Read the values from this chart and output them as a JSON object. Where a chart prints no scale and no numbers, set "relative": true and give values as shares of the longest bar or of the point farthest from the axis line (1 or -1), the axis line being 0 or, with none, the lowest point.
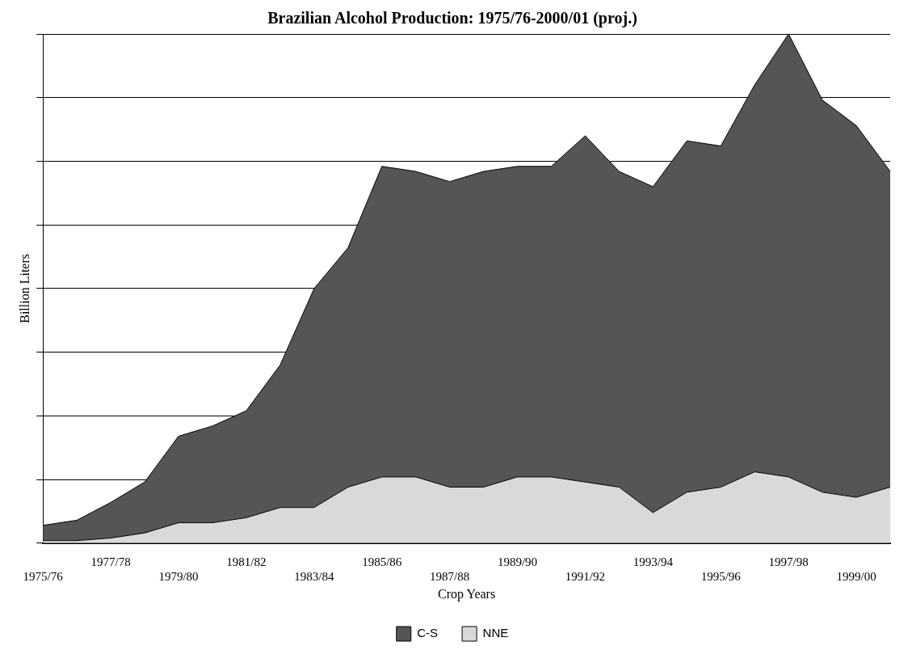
{
  "chart_data": {
    "type": "area",
    "title": "Brazilian Alcohol Production: 1975/76-2000/01 (proj.)",
    "xlabel": "Crop Years",
    "ylabel": "Billion Liters",
    "relative": true,
    "stacked": true,
    "grid": "y",
    "legend": "bottom",
    "categories": [
      "1975/76",
      null,
      "1977/78",
      null,
      "1979/80",
      null,
      "1981/82",
      null,
      "1983/84",
      null,
      "1985/86",
      null,
      "1987/88",
      null,
      "1989/90",
      null,
      "1991/92",
      null,
      "1993/94",
      null,
      "1995/96",
      null,
      "1997/98",
      null,
      "1999/00",
      null
    ],
    "series": [
      {
        "name": "NNE",
        "color": "#d9d9d9",
        "values": [
          0.005,
          0.005,
          0.01,
          0.02,
          0.04,
          0.04,
          0.05,
          0.07,
          0.07,
          0.11,
          0.13,
          0.13,
          0.11,
          0.11,
          0.13,
          0.13,
          0.12,
          0.11,
          0.06,
          0.1,
          0.11,
          0.14,
          0.13,
          0.1,
          0.09,
          0.11
        ]
      },
      {
        "name": "C-S",
        "color": "#555555",
        "values": [
          0.03,
          0.04,
          0.07,
          0.1,
          0.17,
          0.19,
          0.21,
          0.28,
          0.43,
          0.47,
          0.61,
          0.6,
          0.6,
          0.62,
          0.61,
          0.61,
          0.68,
          0.62,
          0.64,
          0.69,
          0.67,
          0.76,
          0.87,
          0.77,
          0.73,
          0.62
        ]
      }
    ]
  }
}
